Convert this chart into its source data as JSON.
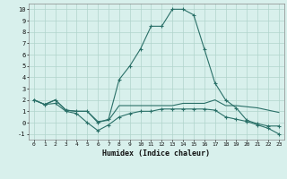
{
  "xlabel": "Humidex (Indice chaleur)",
  "x": [
    0,
    1,
    2,
    3,
    4,
    5,
    6,
    7,
    8,
    9,
    10,
    11,
    12,
    13,
    14,
    15,
    16,
    17,
    18,
    19,
    20,
    21,
    22,
    23
  ],
  "line1": [
    2.0,
    1.6,
    2.0,
    1.1,
    1.0,
    1.0,
    0.0,
    0.3,
    3.8,
    5.0,
    6.5,
    8.5,
    8.5,
    10.0,
    10.0,
    9.5,
    6.5,
    3.5,
    2.0,
    1.3,
    0.2,
    -0.1,
    -0.3,
    -0.3
  ],
  "line2": [
    2.0,
    1.6,
    2.0,
    1.1,
    1.0,
    1.0,
    0.1,
    0.2,
    1.5,
    1.5,
    1.5,
    1.5,
    1.5,
    1.5,
    1.7,
    1.7,
    1.7,
    2.0,
    1.5,
    1.5,
    1.4,
    1.3,
    1.1,
    0.9
  ],
  "line3": [
    2.0,
    1.6,
    1.7,
    1.0,
    0.8,
    0.0,
    -0.7,
    -0.2,
    0.5,
    0.8,
    1.0,
    1.0,
    1.2,
    1.2,
    1.2,
    1.2,
    1.2,
    1.1,
    0.5,
    0.3,
    0.1,
    -0.2,
    -0.5,
    -1.0
  ],
  "line_color": "#2a7068",
  "bg_color": "#d8f0ec",
  "grid_color": "#b0d4cc",
  "ylim": [
    -1.5,
    10.5
  ],
  "xlim": [
    -0.5,
    23.5
  ],
  "yticks": [
    -1,
    0,
    1,
    2,
    3,
    4,
    5,
    6,
    7,
    8,
    9,
    10
  ],
  "xticks": [
    0,
    1,
    2,
    3,
    4,
    5,
    6,
    7,
    8,
    9,
    10,
    11,
    12,
    13,
    14,
    15,
    16,
    17,
    18,
    19,
    20,
    21,
    22,
    23
  ]
}
